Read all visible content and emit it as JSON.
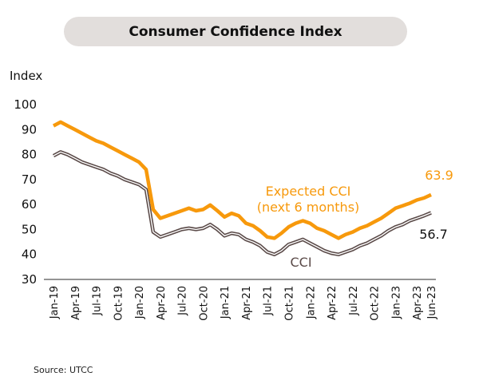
{
  "chart_data": {
    "type": "line",
    "title": "Consumer Confidence Index",
    "ylabel": "Index",
    "xlabel": "",
    "ylim": [
      30,
      100
    ],
    "yticks": [
      30,
      40,
      50,
      60,
      70,
      80,
      90,
      100
    ],
    "x": [
      "Jan-19",
      "Feb-19",
      "Mar-19",
      "Apr-19",
      "May-19",
      "Jun-19",
      "Jul-19",
      "Aug-19",
      "Sep-19",
      "Oct-19",
      "Nov-19",
      "Dec-19",
      "Jan-20",
      "Feb-20",
      "Mar-20",
      "Apr-20",
      "May-20",
      "Jun-20",
      "Jul-20",
      "Aug-20",
      "Sep-20",
      "Oct-20",
      "Nov-20",
      "Dec-20",
      "Jan-21",
      "Feb-21",
      "Mar-21",
      "Apr-21",
      "May-21",
      "Jun-21",
      "Jul-21",
      "Aug-21",
      "Sep-21",
      "Oct-21",
      "Nov-21",
      "Dec-21",
      "Jan-22",
      "Feb-22",
      "Mar-22",
      "Apr-22",
      "May-22",
      "Jun-22",
      "Jul-22",
      "Aug-22",
      "Sep-22",
      "Oct-22",
      "Nov-22",
      "Dec-22",
      "Jan-23",
      "Feb-23",
      "Mar-23",
      "Apr-23",
      "May-23",
      "Jun-23"
    ],
    "xtick_labels": [
      "Jan-19",
      "Apr-19",
      "Jul-19",
      "Oct-19",
      "Jan-20",
      "Apr-20",
      "Jul-20",
      "Oct-20",
      "Jan-21",
      "Apr-21",
      "Jul-21",
      "Oct-21",
      "Jan-22",
      "Apr-22",
      "Jul-22",
      "Oct-22",
      "Jan-23",
      "Apr-23",
      "Jun-23"
    ],
    "series": [
      {
        "name": "Expected CCI (next 6 months)",
        "label_line1": "Expected CCI",
        "label_line2": "(next 6 months)",
        "color": "#f7990c",
        "end_label": "63.9",
        "values": [
          91.5,
          93,
          91.5,
          90,
          88.5,
          87,
          85.5,
          84.5,
          83,
          81.5,
          80,
          78.5,
          77,
          74,
          58,
          54.5,
          55.5,
          56.5,
          57.5,
          58.5,
          57.5,
          58,
          59.8,
          57.5,
          55,
          56.5,
          55.5,
          52.5,
          51.5,
          49.5,
          47,
          46.5,
          48.5,
          51,
          52.5,
          53.5,
          52.5,
          50.5,
          49.5,
          48,
          46.5,
          48,
          49,
          50.5,
          51.5,
          53,
          54.5,
          56.5,
          58.5,
          59.5,
          60.5,
          61.8,
          62.6,
          63.9
        ]
      },
      {
        "name": "CCI",
        "label_line1": "CCI",
        "color": "#5a4a48",
        "end_label": "56.7",
        "values": [
          79.5,
          81,
          80,
          78.5,
          77,
          76,
          75,
          74,
          72.5,
          71.5,
          70,
          69,
          68,
          66,
          49,
          47,
          48,
          49,
          50,
          50.5,
          50,
          50.5,
          52,
          50,
          47.5,
          48.5,
          48,
          46,
          45,
          43.5,
          41,
          40,
          41.5,
          44,
          45,
          46,
          44.5,
          43,
          41.5,
          40.5,
          40,
          41,
          42,
          43.5,
          44.5,
          46,
          47.5,
          49.5,
          51,
          52,
          53.5,
          54.5,
          55.5,
          56.7
        ]
      }
    ]
  },
  "source": "Source: UTCC"
}
